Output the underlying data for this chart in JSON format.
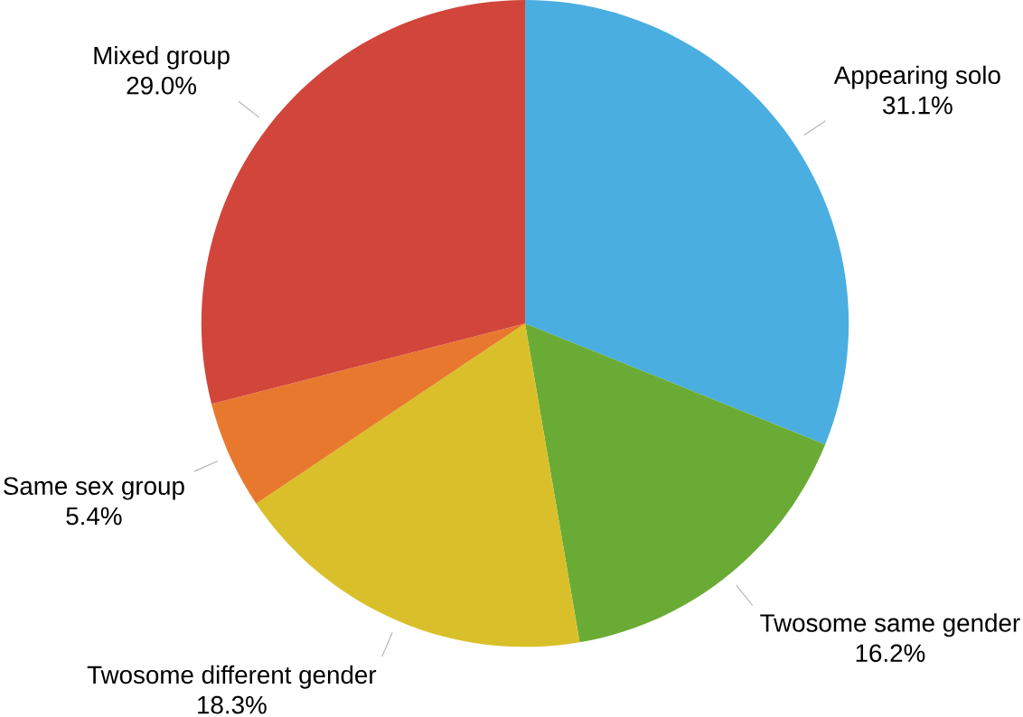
{
  "chart_data": {
    "type": "pie",
    "categories": [
      "Appearing solo",
      "Twosome same gender",
      "Twosome different gender",
      "Same sex group",
      "Mixed group"
    ],
    "values": [
      31.1,
      16.2,
      18.3,
      5.4,
      29.0
    ],
    "value_labels": [
      "31.1%",
      "16.2%",
      "18.3%",
      "5.4%",
      "29.0%"
    ],
    "colors": [
      "#4aaee0",
      "#6aab35",
      "#d9c02a",
      "#e8782e",
      "#d1453b"
    ]
  }
}
